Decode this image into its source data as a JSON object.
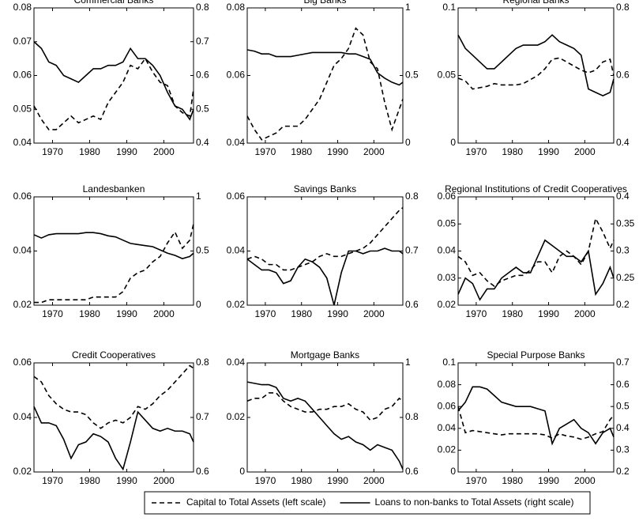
{
  "chart_data": [
    {
      "type": "line",
      "title": "Commercial Banks",
      "x": [
        1965,
        1967,
        1969,
        1971,
        1973,
        1975,
        1977,
        1979,
        1981,
        1983,
        1985,
        1987,
        1989,
        1991,
        1993,
        1995,
        1997,
        1999,
        2001,
        2003,
        2005,
        2007,
        2008
      ],
      "xlim": [
        1965,
        2008
      ],
      "xticks": [
        1970,
        1980,
        1990,
        2000
      ],
      "ylim": [
        0.04,
        0.08
      ],
      "yticks": [
        0.04,
        0.05,
        0.06,
        0.07,
        0.08
      ],
      "y2lim": [
        0.4,
        0.8
      ],
      "y2ticks": [
        0.4,
        0.5,
        0.6,
        0.7,
        0.8
      ],
      "series": [
        {
          "name": "Capital to Total Assets (left scale)",
          "color": "#000000",
          "linestyle": "dashed",
          "axis": "y",
          "values": [
            0.051,
            0.047,
            0.044,
            0.044,
            0.046,
            0.048,
            0.046,
            0.047,
            0.048,
            0.047,
            0.052,
            0.055,
            0.058,
            0.063,
            0.062,
            0.065,
            0.061,
            0.058,
            0.057,
            0.051,
            0.049,
            0.048,
            0.056
          ]
        },
        {
          "name": "Loans to non-banks to Total Assets (right scale)",
          "color": "#000000",
          "linestyle": "solid",
          "axis": "y2",
          "values": [
            0.7,
            0.68,
            0.64,
            0.63,
            0.6,
            0.59,
            0.58,
            0.6,
            0.62,
            0.62,
            0.63,
            0.63,
            0.64,
            0.68,
            0.65,
            0.65,
            0.63,
            0.6,
            0.55,
            0.51,
            0.5,
            0.47,
            0.5
          ]
        }
      ]
    },
    {
      "type": "line",
      "title": "Big Banks",
      "x": [
        1965,
        1967,
        1969,
        1971,
        1973,
        1975,
        1977,
        1979,
        1981,
        1983,
        1985,
        1987,
        1989,
        1991,
        1993,
        1995,
        1997,
        1999,
        2001,
        2003,
        2005,
        2007,
        2008
      ],
      "xlim": [
        1965,
        2008
      ],
      "xticks": [
        1970,
        1980,
        1990,
        2000
      ],
      "ylim": [
        0.04,
        0.08
      ],
      "yticks": [
        0.04,
        0.06,
        0.08
      ],
      "y2lim": [
        0,
        1
      ],
      "y2ticks": [
        0,
        0.5,
        1
      ],
      "series": [
        {
          "color": "#000000",
          "linestyle": "dashed",
          "axis": "y",
          "values": [
            0.048,
            0.044,
            0.041,
            0.042,
            0.043,
            0.045,
            0.045,
            0.045,
            0.047,
            0.05,
            0.053,
            0.058,
            0.063,
            0.065,
            0.068,
            0.074,
            0.072,
            0.064,
            0.062,
            0.052,
            0.044,
            0.05,
            0.053
          ]
        },
        {
          "color": "#000000",
          "linestyle": "solid",
          "axis": "y2",
          "values": [
            0.69,
            0.68,
            0.66,
            0.66,
            0.64,
            0.64,
            0.64,
            0.65,
            0.66,
            0.67,
            0.67,
            0.67,
            0.67,
            0.67,
            0.66,
            0.66,
            0.64,
            0.62,
            0.52,
            0.48,
            0.45,
            0.43,
            0.45
          ]
        }
      ]
    },
    {
      "type": "line",
      "title": "Regional Banks",
      "x": [
        1965,
        1967,
        1969,
        1971,
        1973,
        1975,
        1977,
        1979,
        1981,
        1983,
        1985,
        1987,
        1989,
        1991,
        1993,
        1995,
        1997,
        1999,
        2001,
        2003,
        2005,
        2007,
        2008
      ],
      "xlim": [
        1965,
        2008
      ],
      "xticks": [
        1970,
        1980,
        1990,
        2000
      ],
      "ylim": [
        0,
        0.1
      ],
      "yticks": [
        0,
        0.05,
        0.1
      ],
      "y2lim": [
        0.4,
        0.8
      ],
      "y2ticks": [
        0.4,
        0.6,
        0.8
      ],
      "series": [
        {
          "color": "#000000",
          "linestyle": "dashed",
          "axis": "y",
          "values": [
            0.048,
            0.046,
            0.04,
            0.041,
            0.042,
            0.044,
            0.043,
            0.043,
            0.043,
            0.044,
            0.047,
            0.05,
            0.055,
            0.062,
            0.063,
            0.06,
            0.057,
            0.054,
            0.052,
            0.054,
            0.06,
            0.062,
            0.05
          ]
        },
        {
          "color": "#000000",
          "linestyle": "solid",
          "axis": "y2",
          "values": [
            0.72,
            0.68,
            0.66,
            0.64,
            0.62,
            0.62,
            0.64,
            0.66,
            0.68,
            0.69,
            0.69,
            0.69,
            0.7,
            0.72,
            0.7,
            0.69,
            0.68,
            0.66,
            0.56,
            0.55,
            0.54,
            0.55,
            0.59
          ]
        }
      ]
    },
    {
      "type": "line",
      "title": "Landesbanken",
      "x": [
        1965,
        1967,
        1969,
        1971,
        1973,
        1975,
        1977,
        1979,
        1981,
        1983,
        1985,
        1987,
        1989,
        1991,
        1993,
        1995,
        1997,
        1999,
        2001,
        2003,
        2005,
        2007,
        2008
      ],
      "xlim": [
        1965,
        2008
      ],
      "xticks": [
        1970,
        1980,
        1990,
        2000
      ],
      "ylim": [
        0.02,
        0.06
      ],
      "yticks": [
        0.02,
        0.04,
        0.06
      ],
      "y2lim": [
        0,
        1
      ],
      "y2ticks": [
        0,
        0.5,
        1
      ],
      "series": [
        {
          "color": "#000000",
          "linestyle": "dashed",
          "axis": "y",
          "values": [
            0.021,
            0.021,
            0.022,
            0.022,
            0.022,
            0.022,
            0.022,
            0.022,
            0.023,
            0.023,
            0.023,
            0.023,
            0.025,
            0.03,
            0.032,
            0.033,
            0.036,
            0.038,
            0.043,
            0.047,
            0.041,
            0.044,
            0.05
          ]
        },
        {
          "color": "#000000",
          "linestyle": "solid",
          "axis": "y2",
          "values": [
            0.65,
            0.62,
            0.65,
            0.66,
            0.66,
            0.66,
            0.66,
            0.67,
            0.67,
            0.66,
            0.64,
            0.63,
            0.6,
            0.57,
            0.56,
            0.55,
            0.54,
            0.51,
            0.48,
            0.46,
            0.43,
            0.45,
            0.48
          ]
        }
      ]
    },
    {
      "type": "line",
      "title": "Savings Banks",
      "x": [
        1965,
        1967,
        1969,
        1971,
        1973,
        1975,
        1977,
        1979,
        1981,
        1983,
        1985,
        1987,
        1989,
        1991,
        1993,
        1995,
        1997,
        1999,
        2001,
        2003,
        2005,
        2007,
        2008
      ],
      "xlim": [
        1965,
        2008
      ],
      "xticks": [
        1970,
        1980,
        1990,
        2000
      ],
      "ylim": [
        0.02,
        0.06
      ],
      "yticks": [
        0.02,
        0.04,
        0.06
      ],
      "y2lim": [
        0.6,
        0.8
      ],
      "y2ticks": [
        0.6,
        0.7,
        0.8
      ],
      "series": [
        {
          "color": "#000000",
          "linestyle": "dashed",
          "axis": "y",
          "values": [
            0.037,
            0.038,
            0.037,
            0.035,
            0.035,
            0.033,
            0.033,
            0.034,
            0.035,
            0.036,
            0.038,
            0.039,
            0.038,
            0.038,
            0.039,
            0.04,
            0.041,
            0.043,
            0.046,
            0.049,
            0.052,
            0.055,
            0.056
          ]
        },
        {
          "color": "#000000",
          "linestyle": "solid",
          "axis": "y2",
          "values": [
            0.685,
            0.675,
            0.665,
            0.665,
            0.66,
            0.64,
            0.645,
            0.67,
            0.685,
            0.68,
            0.67,
            0.65,
            0.6,
            0.66,
            0.7,
            0.7,
            0.695,
            0.7,
            0.7,
            0.705,
            0.7,
            0.7,
            0.695
          ]
        }
      ]
    },
    {
      "type": "line",
      "title": "Regional Institutions of Credit Cooperatives",
      "x": [
        1965,
        1967,
        1969,
        1971,
        1973,
        1975,
        1977,
        1979,
        1981,
        1983,
        1985,
        1987,
        1989,
        1991,
        1993,
        1995,
        1997,
        1999,
        2001,
        2003,
        2005,
        2007,
        2008
      ],
      "xlim": [
        1965,
        2008
      ],
      "xticks": [
        1970,
        1980,
        1990,
        2000
      ],
      "ylim": [
        0.02,
        0.06
      ],
      "yticks": [
        0.02,
        0.03,
        0.04,
        0.05,
        0.06
      ],
      "y2lim": [
        0.2,
        0.4
      ],
      "y2ticks": [
        0.2,
        0.25,
        0.3,
        0.35,
        0.4
      ],
      "series": [
        {
          "color": "#000000",
          "linestyle": "dashed",
          "axis": "y",
          "values": [
            0.038,
            0.036,
            0.031,
            0.032,
            0.029,
            0.027,
            0.029,
            0.03,
            0.031,
            0.031,
            0.033,
            0.036,
            0.036,
            0.032,
            0.038,
            0.04,
            0.038,
            0.035,
            0.04,
            0.052,
            0.047,
            0.041,
            0.044
          ]
        },
        {
          "color": "#000000",
          "linestyle": "solid",
          "axis": "y2",
          "values": [
            0.22,
            0.25,
            0.24,
            0.21,
            0.23,
            0.23,
            0.25,
            0.26,
            0.27,
            0.26,
            0.26,
            0.29,
            0.32,
            0.31,
            0.3,
            0.29,
            0.29,
            0.28,
            0.3,
            0.22,
            0.24,
            0.27,
            0.25
          ]
        }
      ]
    },
    {
      "type": "line",
      "title": "Credit Cooperatives",
      "x": [
        1965,
        1967,
        1969,
        1971,
        1973,
        1975,
        1977,
        1979,
        1981,
        1983,
        1985,
        1987,
        1989,
        1991,
        1993,
        1995,
        1997,
        1999,
        2001,
        2003,
        2005,
        2007,
        2008
      ],
      "xlim": [
        1965,
        2008
      ],
      "xticks": [
        1970,
        1980,
        1990,
        2000
      ],
      "ylim": [
        0.02,
        0.06
      ],
      "yticks": [
        0.02,
        0.04,
        0.06
      ],
      "y2lim": [
        0.6,
        0.8
      ],
      "y2ticks": [
        0.6,
        0.7,
        0.8
      ],
      "series": [
        {
          "color": "#000000",
          "linestyle": "dashed",
          "axis": "y",
          "values": [
            0.055,
            0.053,
            0.048,
            0.045,
            0.043,
            0.042,
            0.042,
            0.041,
            0.038,
            0.036,
            0.038,
            0.039,
            0.038,
            0.04,
            0.044,
            0.043,
            0.045,
            0.048,
            0.05,
            0.053,
            0.056,
            0.059,
            0.058
          ]
        },
        {
          "color": "#000000",
          "linestyle": "solid",
          "axis": "y2",
          "values": [
            0.72,
            0.69,
            0.69,
            0.685,
            0.66,
            0.625,
            0.65,
            0.655,
            0.67,
            0.665,
            0.655,
            0.625,
            0.605,
            0.655,
            0.71,
            0.695,
            0.68,
            0.675,
            0.68,
            0.675,
            0.675,
            0.67,
            0.655
          ]
        }
      ]
    },
    {
      "type": "line",
      "title": "Mortgage Banks",
      "x": [
        1965,
        1967,
        1969,
        1971,
        1973,
        1975,
        1977,
        1979,
        1981,
        1983,
        1985,
        1987,
        1989,
        1991,
        1993,
        1995,
        1997,
        1999,
        2001,
        2003,
        2005,
        2007,
        2008
      ],
      "xlim": [
        1965,
        2008
      ],
      "xticks": [
        1970,
        1980,
        1990,
        2000
      ],
      "ylim": [
        0,
        0.04
      ],
      "yticks": [
        0,
        0.02,
        0.04
      ],
      "y2lim": [
        0.6,
        1
      ],
      "y2ticks": [
        0.6,
        0.8,
        1
      ],
      "series": [
        {
          "color": "#000000",
          "linestyle": "dashed",
          "axis": "y",
          "values": [
            0.026,
            0.027,
            0.027,
            0.029,
            0.029,
            0.026,
            0.024,
            0.023,
            0.022,
            0.022,
            0.023,
            0.023,
            0.024,
            0.024,
            0.025,
            0.023,
            0.022,
            0.019,
            0.02,
            0.023,
            0.024,
            0.027,
            0.026
          ]
        },
        {
          "color": "#000000",
          "linestyle": "solid",
          "axis": "y2",
          "values": [
            0.93,
            0.925,
            0.92,
            0.92,
            0.91,
            0.87,
            0.86,
            0.87,
            0.86,
            0.83,
            0.8,
            0.77,
            0.74,
            0.72,
            0.73,
            0.71,
            0.7,
            0.68,
            0.7,
            0.69,
            0.68,
            0.64,
            0.61
          ]
        }
      ]
    },
    {
      "type": "line",
      "title": "Special Purpose Banks",
      "x": [
        1965,
        1967,
        1969,
        1971,
        1973,
        1975,
        1977,
        1979,
        1981,
        1983,
        1985,
        1987,
        1989,
        1991,
        1993,
        1995,
        1997,
        1999,
        2001,
        2003,
        2005,
        2007,
        2008
      ],
      "xlim": [
        1965,
        2008
      ],
      "xticks": [
        1970,
        1980,
        1990,
        2000
      ],
      "ylim": [
        0,
        0.1
      ],
      "yticks": [
        0,
        0.02,
        0.04,
        0.06,
        0.08,
        0.1
      ],
      "y2lim": [
        0.2,
        0.7
      ],
      "y2ticks": [
        0.2,
        0.3,
        0.4,
        0.5,
        0.6,
        0.7
      ],
      "series": [
        {
          "color": "#000000",
          "linestyle": "dashed",
          "axis": "y",
          "values": [
            0.06,
            0.036,
            0.038,
            0.037,
            0.036,
            0.035,
            0.034,
            0.035,
            0.035,
            0.035,
            0.035,
            0.035,
            0.034,
            0.031,
            0.035,
            0.033,
            0.032,
            0.03,
            0.032,
            0.035,
            0.037,
            0.048,
            0.052
          ]
        },
        {
          "color": "#000000",
          "linestyle": "solid",
          "axis": "y2",
          "values": [
            0.48,
            0.52,
            0.59,
            0.59,
            0.58,
            0.55,
            0.52,
            0.51,
            0.5,
            0.5,
            0.5,
            0.49,
            0.48,
            0.33,
            0.4,
            0.42,
            0.44,
            0.4,
            0.38,
            0.33,
            0.38,
            0.4,
            0.36
          ]
        }
      ]
    }
  ]
}
